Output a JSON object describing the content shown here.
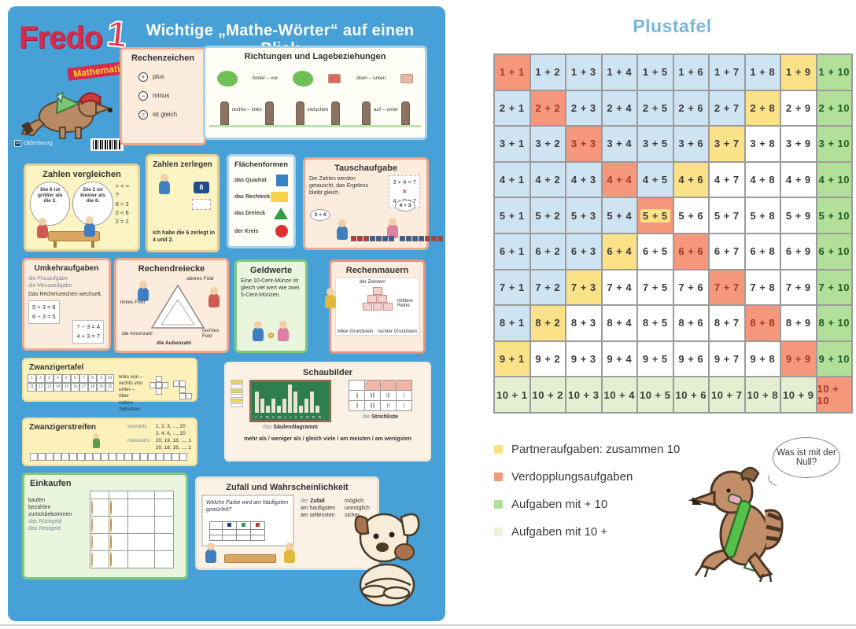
{
  "left_poster": {
    "background_color": "#47a1d6",
    "logo": {
      "brand": "Fredo",
      "number": "1",
      "subtitle": "Mathematik"
    },
    "publisher": "Oldenbourg",
    "title": "Wichtige „Mathe-Wörter“ auf einen Blick",
    "cards": {
      "rechenzeichen": {
        "title": "Rechenzeichen",
        "items": [
          {
            "symbol": "+",
            "label": "plus"
          },
          {
            "symbol": "−",
            "label": "minus"
          },
          {
            "symbol": "=",
            "label": "ist gleich"
          }
        ]
      },
      "richtungen": {
        "title": "Richtungen und Lagebeziehungen",
        "labels": [
          "hinter – vor",
          "oben – unten",
          "rechts – links",
          "zwischen",
          "auf – unter"
        ]
      },
      "zahlen_vergleichen": {
        "title": "Zahlen vergleichen",
        "bubbles": [
          "Die 6 ist größer als die 2.",
          "Die 2 ist kleiner als die 6."
        ],
        "symbol_row": "> < = ?",
        "comparisons": [
          "6 > 2",
          "2 < 6",
          "2 = 2"
        ]
      },
      "zahlen_zerlegen": {
        "title": "Zahlen zerlegen",
        "number_card": "6",
        "caption": "Ich habe die 6 zerlegt in 4 und 2."
      },
      "flaechenformen": {
        "title": "Flächenformen",
        "items": [
          {
            "label": "das Quadrat",
            "shape": "square",
            "color": "#3b7fc4"
          },
          {
            "label": "das Rechteck",
            "shape": "rectangle",
            "color": "#f6d24a"
          },
          {
            "label": "das Dreieck",
            "shape": "triangle",
            "color": "#2f9e44"
          },
          {
            "label": "der Kreis",
            "shape": "circle",
            "color": "#e03131"
          }
        ]
      },
      "tauschaufgabe": {
        "title": "Tauschaufgabe",
        "caption": "Die Zahlen werden getauscht, das Ergebnis bleibt gleich.",
        "equations": [
          "3 + 4 = 7",
          "4 + 3 = 7"
        ],
        "bubbles": [
          "3 + 4",
          "4 + 3"
        ]
      },
      "umkehraufgaben": {
        "title": "Umkehraufgaben",
        "words": [
          "die Plusaufgabe",
          "die Minusaufgabe"
        ],
        "caption": "Das Rechenzeichen wechselt.",
        "equation_pairs": [
          [
            "5 + 3 = 8",
            "8 − 3 = 5"
          ],
          [
            "7 − 3 = 4",
            "4 + 3 = 7"
          ]
        ]
      },
      "rechendreiecke": {
        "title": "Rechendreiecke",
        "labels": {
          "top": "oberes Feld",
          "left": "linkes Feld",
          "right": "rechtes Feld",
          "inner": "die Innenzahl",
          "outer": "die Außenzahl"
        }
      },
      "geldwerte": {
        "title": "Geldwerte",
        "caption": "Eine 10-Cent-Münze ist gleich viel wert wie zwei 5-Cent-Münzen."
      },
      "rechenmauern": {
        "title": "Rechenmauern",
        "labels": {
          "top": "der Zielstein",
          "middle": "mittlere Reihe",
          "left": "linker Grundstein",
          "right": "rechter Grundstein"
        }
      },
      "zwanzigertafel": {
        "title": "Zwanzigertafel",
        "labels": [
          "links von – rechts von",
          "unter – über",
          "neben",
          "zwischen"
        ]
      },
      "zwanzigerstreifen": {
        "title": "Zwanzigerstreifen",
        "rows": [
          {
            "word": "vorwärts",
            "sequences": [
              "1, 2, 3, ..., 20",
              "2, 4, 6, ..., 20"
            ]
          },
          {
            "word": "rückwärts",
            "sequences": [
              "20, 19, 18, ..., 1",
              "20, 18, 16, ..., 2"
            ]
          }
        ]
      },
      "schaubilder": {
        "title": "Schaubilder",
        "diagram_label": "das Säulendiagramm",
        "tally_label": "die Strichliste",
        "caption": "mehr als / weniger als / gleich viele / am meisten / am wenigsten",
        "month_letters": "J F M A M J J A S O N D",
        "bar_heights": [
          3,
          2,
          1,
          2,
          1,
          2,
          4,
          3,
          1,
          2,
          3,
          1
        ],
        "tally_rows": [
          [
            "||||",
            "|||",
            "|"
          ],
          [
            "||||",
            "||",
            "|"
          ]
        ]
      },
      "einkaufen": {
        "title": "Einkaufen",
        "words": [
          "kaufen",
          "bezahlen",
          "zurückbekommen",
          "das Rückgeld",
          "das Restgeld"
        ]
      },
      "zufall": {
        "title": "Zufall und Wahrscheinlichkeit",
        "board_text": "Welche Farbe wird am häufigsten gewürfelt?",
        "words_left": [
          "der Zufall",
          "am häufigsten",
          "am seltensten"
        ],
        "words_right": [
          "möglich",
          "unmöglich",
          "sicher"
        ]
      }
    }
  },
  "right_poster": {
    "title": "Plustafel",
    "plustafel": {
      "rows": [
        [
          "1 + 1",
          "1 + 2",
          "1 + 3",
          "1 + 4",
          "1 + 5",
          "1 + 6",
          "1 + 7",
          "1 + 8",
          "1 + 9",
          "1 + 10"
        ],
        [
          "2 + 1",
          "2 + 2",
          "2 + 3",
          "2 + 4",
          "2 + 5",
          "2 + 6",
          "2 + 7",
          "2 + 8",
          "2 + 9",
          "2 + 10"
        ],
        [
          "3 + 1",
          "3 + 2",
          "3 + 3",
          "3 + 4",
          "3 + 5",
          "3 + 6",
          "3 + 7",
          "3 + 8",
          "3 + 9",
          "3 + 10"
        ],
        [
          "4 + 1",
          "4 + 2",
          "4 + 3",
          "4 + 4",
          "4 + 5",
          "4 + 6",
          "4 + 7",
          "4 + 8",
          "4 + 9",
          "4 + 10"
        ],
        [
          "5 + 1",
          "5 + 2",
          "5 + 3",
          "5 + 4",
          "5 + 5",
          "5 + 6",
          "5 + 7",
          "5 + 8",
          "5 + 9",
          "5 + 10"
        ],
        [
          "6 + 1",
          "6 + 2",
          "6 + 3",
          "6 + 4",
          "6 + 5",
          "6 + 6",
          "6 + 7",
          "6 + 8",
          "6 + 9",
          "6 + 10"
        ],
        [
          "7 + 1",
          "7 + 2",
          "7 + 3",
          "7 + 4",
          "7 + 5",
          "7 + 6",
          "7 + 7",
          "7 + 8",
          "7 + 9",
          "7 + 10"
        ],
        [
          "8 + 1",
          "8 + 2",
          "8 + 3",
          "8 + 4",
          "8 + 5",
          "8 + 6",
          "8 + 7",
          "8 + 8",
          "8 + 9",
          "8 + 10"
        ],
        [
          "9 + 1",
          "9 + 2",
          "9 + 3",
          "9 + 4",
          "9 + 5",
          "9 + 6",
          "9 + 7",
          "9 + 8",
          "9 + 9",
          "9 + 10"
        ],
        [
          "10 + 1",
          "10 + 2",
          "10 + 3",
          "10 + 4",
          "10 + 5",
          "10 + 6",
          "10 + 7",
          "10 + 8",
          "10 + 9",
          "10 + 10"
        ]
      ],
      "colors": {
        "double": "#f5977a",
        "partner": "#fbe289",
        "sum_below_10": "#cfe4f3",
        "sum_above_10": "#ffffff",
        "plus10_column": "#b2e09b",
        "ten_plus_row": "#e3efd0"
      }
    },
    "legend": [
      {
        "color": "#fbe289",
        "label": "Partneraufgaben: zusammen 10"
      },
      {
        "color": "#f5977a",
        "label": "Verdopplungsaufgaben"
      },
      {
        "color": "#b2e09b",
        "label": "Aufgaben mit + 10"
      },
      {
        "color": "#e9f3d9",
        "label": "Aufgaben mit 10 +"
      }
    ],
    "speech_bubble": "Was ist mit der Null?"
  }
}
